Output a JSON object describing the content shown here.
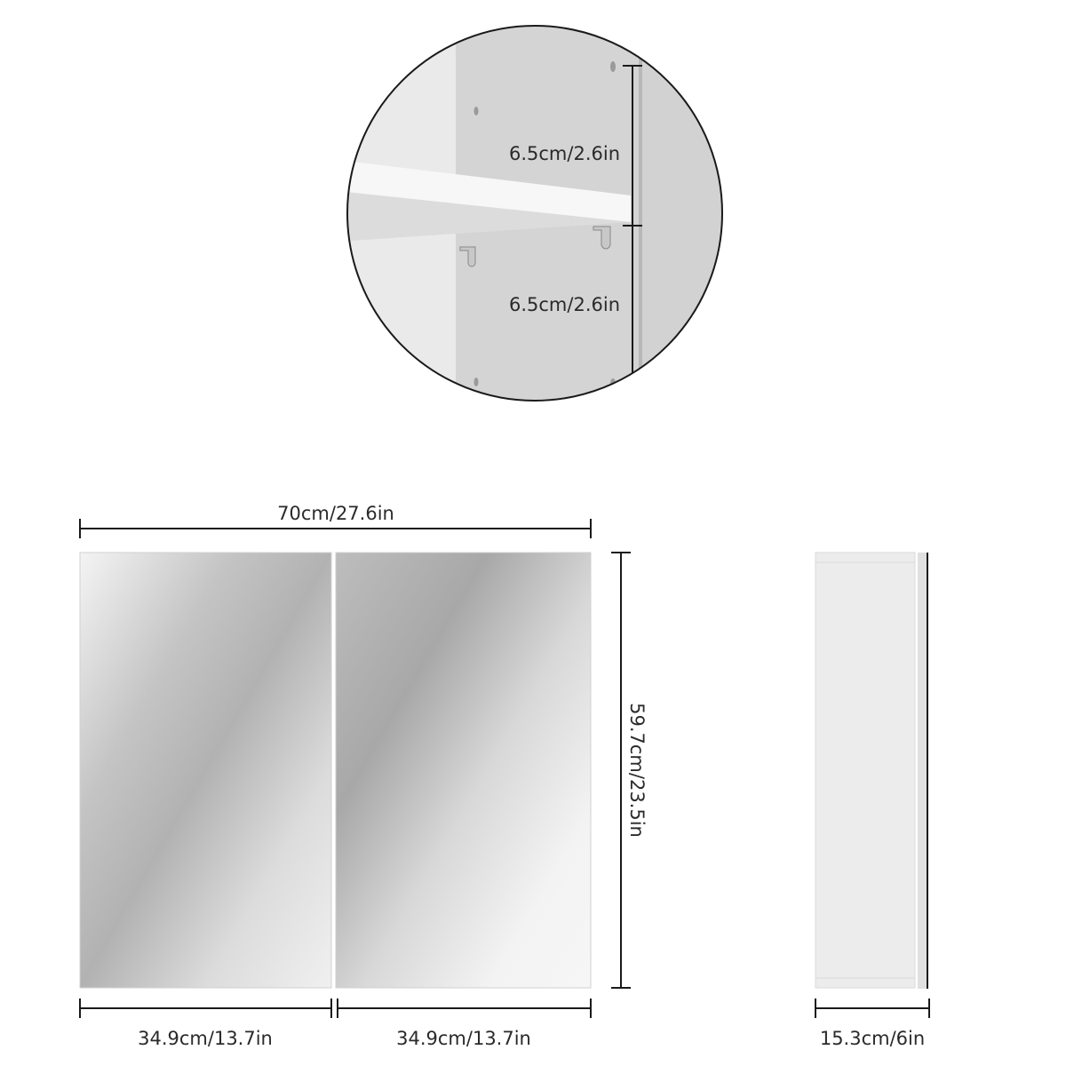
{
  "detail": {
    "shelf_gap_upper": "6.5cm/2.6in",
    "shelf_gap_lower": "6.5cm/2.6in"
  },
  "front_view": {
    "width": "70cm/27.6in",
    "height": "59.7cm/23.5in",
    "left_door_width": "34.9cm/13.7in",
    "right_door_width": "34.9cm/13.7in"
  },
  "side_view": {
    "depth": "15.3cm/6in"
  },
  "colors": {
    "line": "#1a1a1a",
    "mirror_dark": "#a9a9a9",
    "mirror_light": "#f2f2f2",
    "panel": "#d6d6d6"
  }
}
